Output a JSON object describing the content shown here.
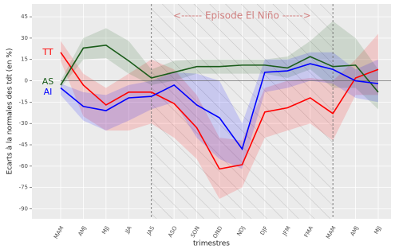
{
  "chart_data": {
    "type": "line",
    "xlabel": "trimestres",
    "ylabel": "Ecarts à la normales des tdt (en %)",
    "categories": [
      "MAM",
      "AMJ",
      "MJJ",
      "JJA",
      "JAS",
      "ASO",
      "SON",
      "OND",
      "NDJ",
      "DJF",
      "JFM",
      "FMA",
      "MAM",
      "AMJ",
      "MJJ"
    ],
    "ylim": [
      -97,
      54
    ],
    "yticks": [
      45,
      30,
      15,
      0,
      -15,
      -30,
      -45,
      -60,
      -75,
      -90
    ],
    "grid": true,
    "annotation": {
      "text": "<------ Episode El Niño ------>",
      "from": 4,
      "to": 12,
      "color": "#d08080"
    },
    "series": [
      {
        "name": "TT",
        "color": "#ff0000",
        "values": [
          20,
          -3,
          -17,
          -8,
          -8,
          -16,
          -33,
          -62,
          -59,
          -22,
          -19,
          -12,
          -23,
          2,
          8
        ],
        "upper": [
          28,
          5,
          -5,
          5,
          15,
          8,
          -10,
          -40,
          -42,
          -5,
          0,
          2,
          0,
          15,
          33
        ],
        "lower": [
          14,
          -25,
          -35,
          -35,
          -30,
          -40,
          -55,
          -83,
          -75,
          -40,
          -35,
          -30,
          -42,
          -10,
          -10
        ]
      },
      {
        "name": "AS",
        "color": "#1a5c1a",
        "values": [
          -3,
          23,
          25,
          14,
          2,
          6,
          10,
          10,
          11,
          11,
          9,
          17,
          10,
          11,
          -8
        ],
        "upper": [
          0,
          30,
          37,
          28,
          8,
          14,
          15,
          15,
          15,
          15,
          17,
          28,
          42,
          30,
          8
        ],
        "lower": [
          -5,
          15,
          16,
          5,
          -3,
          0,
          5,
          5,
          5,
          5,
          2,
          8,
          -5,
          -5,
          -20
        ]
      },
      {
        "name": "AI",
        "color": "#0000ff",
        "values": [
          -5,
          -18,
          -21,
          -12,
          -11,
          -3,
          -17,
          -26,
          -48,
          6,
          7,
          12,
          8,
          0,
          -2
        ],
        "upper": [
          -2,
          -8,
          -10,
          -3,
          0,
          6,
          5,
          0,
          -30,
          15,
          15,
          20,
          20,
          8,
          15
        ],
        "lower": [
          -10,
          -28,
          -35,
          -28,
          -20,
          -15,
          -40,
          -55,
          -62,
          -8,
          -5,
          0,
          -2,
          -12,
          -15
        ]
      }
    ]
  }
}
